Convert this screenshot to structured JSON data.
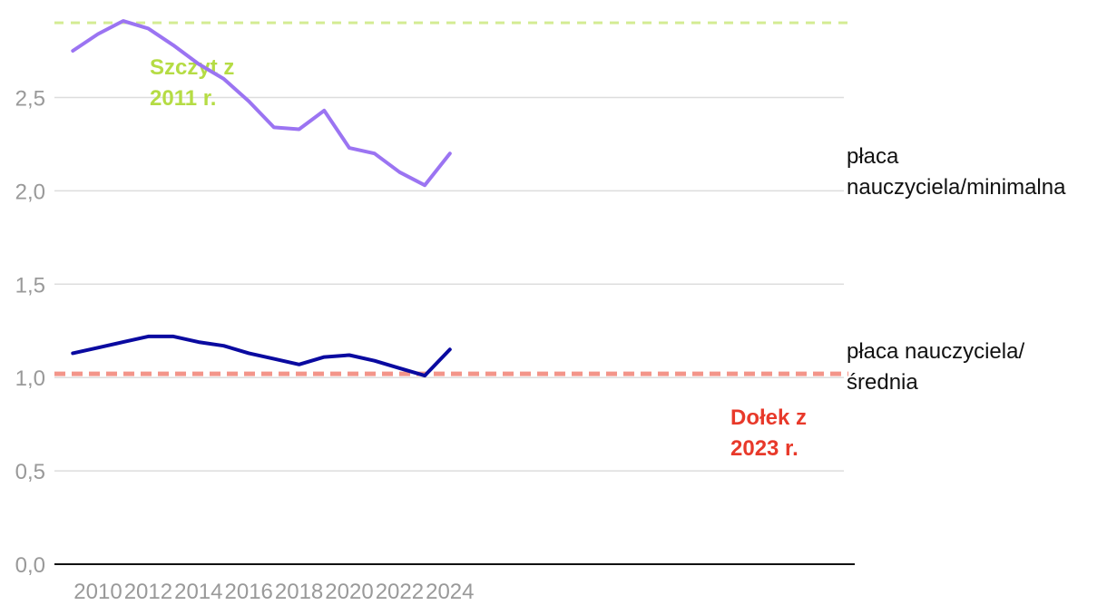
{
  "chart_data": {
    "type": "line",
    "x": [
      2009,
      2010,
      2011,
      2012,
      2013,
      2014,
      2015,
      2016,
      2017,
      2018,
      2019,
      2020,
      2021,
      2022,
      2023,
      2024
    ],
    "series": [
      {
        "name_lines": [
          "płaca",
          "nauczyciela/minimalna"
        ],
        "color": "#9b74f2",
        "values": [
          2.75,
          2.84,
          2.91,
          2.87,
          2.78,
          2.68,
          2.6,
          2.48,
          2.34,
          2.33,
          2.43,
          2.23,
          2.2,
          2.1,
          2.03,
          2.2
        ]
      },
      {
        "name_lines": [
          "płaca nauczyciela/",
          "średnia"
        ],
        "color": "#0a0aa0",
        "values": [
          1.13,
          1.16,
          1.19,
          1.22,
          1.22,
          1.19,
          1.17,
          1.13,
          1.1,
          1.07,
          1.11,
          1.12,
          1.09,
          1.05,
          1.01,
          1.15
        ]
      }
    ],
    "reference_lines": [
      {
        "value": 2.9,
        "color": "#d4ec94",
        "label_lines": [
          "Szczyt z",
          "2011 r."
        ],
        "label_color": "#b5dc44"
      },
      {
        "value": 1.02,
        "color": "#f3958a",
        "label_lines": [
          "Dołek z",
          "2023 r."
        ],
        "label_color": "#e8392a"
      }
    ],
    "y_ticks": [
      "0,0",
      "0,5",
      "1,0",
      "1,5",
      "2,0",
      "2,5"
    ],
    "y_tick_values": [
      0,
      0.5,
      1.0,
      1.5,
      2.0,
      2.5
    ],
    "x_ticks": [
      "2010",
      "2012",
      "2014",
      "2016",
      "2018",
      "2020",
      "2022",
      "2024"
    ],
    "x_tick_values": [
      2010,
      2012,
      2014,
      2016,
      2018,
      2020,
      2022,
      2024
    ],
    "xlim": [
      2008.4,
      2024.5
    ],
    "ylim": [
      0,
      3.0
    ],
    "grid": true,
    "xlabel": "",
    "ylabel": ""
  }
}
